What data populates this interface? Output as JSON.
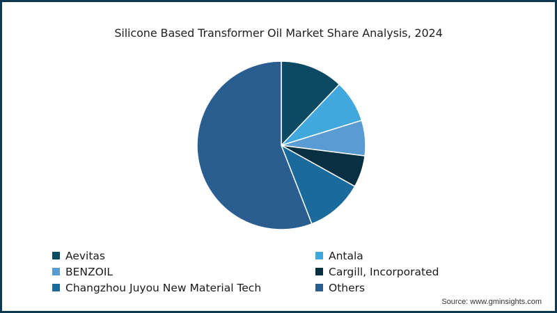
{
  "chart_data": {
    "type": "pie",
    "title": "Silicone Based Transformer Oil Market Share Analysis, 2024",
    "start_angle_deg": 0,
    "direction": "clockwise",
    "categories": [
      "Aevitas",
      "Antala",
      "BENZOIL",
      "Cargill, Incorporated",
      "Changzhou Juyou New Material Tech",
      "Others"
    ],
    "values": [
      12.1,
      8.1,
      6.8,
      6.1,
      11.0,
      55.9
    ],
    "unit": "%",
    "colors": [
      "#0c4a63",
      "#41a8dd",
      "#5a9bd4",
      "#082f42",
      "#1a6b9c",
      "#2a5e90"
    ],
    "legend_position": "bottom",
    "source": "Source: www.gminsights.com"
  },
  "header": {
    "title": "Silicone Based Transformer Oil Market Share Analysis, 2024"
  },
  "legend": {
    "items": [
      {
        "label": "Aevitas",
        "color": "#0c4a63"
      },
      {
        "label": "Antala",
        "color": "#41a8dd"
      },
      {
        "label": "BENZOIL",
        "color": "#5a9bd4"
      },
      {
        "label": "Cargill, Incorporated",
        "color": "#082f42"
      },
      {
        "label": "Changzhou Juyou New Material Tech",
        "color": "#1a6b9c"
      },
      {
        "label": "Others",
        "color": "#2a5e90"
      }
    ]
  },
  "footer": {
    "source": "Source: www.gminsights.com"
  },
  "theme": {
    "border_color": "#0d3a52",
    "slice_separator": "#ffffff"
  }
}
